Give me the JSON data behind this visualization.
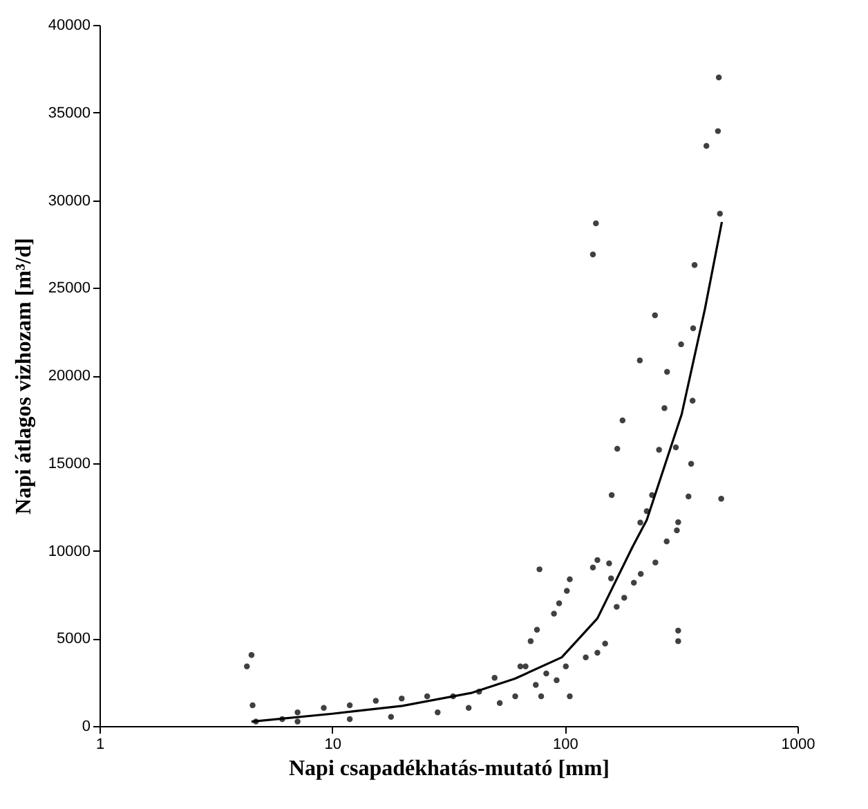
{
  "chart_data": {
    "type": "scatter",
    "xlabel": "Napi csapadékhatás-mutató [mm]",
    "ylabel": "Napi átlagos vizhozam [m³/d]",
    "log": "x",
    "xlim": [
      1,
      1000
    ],
    "xticks": [
      1,
      10,
      100,
      1000
    ],
    "ylim": [
      0,
      40000
    ],
    "yticks": [
      0,
      5000,
      10000,
      15000,
      20000,
      25000,
      30000,
      35000,
      40000
    ],
    "grid": false,
    "marker": "circle",
    "series": [
      {
        "color": "#404040",
        "x": [
          4.5,
          4.3,
          4.55,
          4.7,
          6.1,
          7.1,
          9.2,
          11.9,
          15.4,
          19.9,
          25.6,
          33.1,
          49.9,
          42.8,
          64.4,
          7.1,
          11.9,
          17.9,
          28.4,
          38.6,
          52.5,
          77.8,
          105,
          102,
          94.5,
          89.8,
          75.9,
          71.3,
          138,
          132,
          155,
          158,
          245,
          274,
          212,
          198,
          307,
          307,
          67.8,
          83.2,
          101,
          123,
          138,
          149,
          167,
          180,
          75,
          92.2,
          105,
          79.1,
          61.2,
          459,
          455,
          406,
          464,
          136,
          132,
          361,
          244,
          356,
          316,
          210,
          275,
          268,
          354,
          177,
          168,
          254,
          300,
          349,
          159,
          237,
          340,
          470,
          225,
          211,
          307,
          303
        ],
        "values": [
          4050,
          3400,
          1180,
          260,
          390,
          780,
          1040,
          1180,
          1440,
          1570,
          1700,
          1700,
          2750,
          1960,
          3400,
          260,
          390,
          520,
          780,
          1040,
          1310,
          8940,
          8370,
          7710,
          7000,
          6410,
          5490,
          4840,
          9470,
          9040,
          9280,
          8420,
          9330,
          10530,
          8680,
          8180,
          5440,
          4840,
          3400,
          3000,
          3400,
          3920,
          4180,
          4700,
          6800,
          7320,
          2350,
          2610,
          1700,
          1700,
          1700,
          37000,
          33940,
          33100,
          29230,
          28680,
          26900,
          26300,
          23430,
          22690,
          21780,
          20860,
          20210,
          18140,
          18560,
          17440,
          15820,
          15760,
          15900,
          14960,
          13180,
          13180,
          13100,
          12970,
          12260,
          11610,
          11630,
          11160
        ]
      },
      {
        "type": "line",
        "color": "#000000",
        "marker": "none",
        "x": [
          4.5,
          10,
          20,
          40,
          61,
          97,
          138,
          195,
          225,
          318,
          400,
          473
        ],
        "values": [
          250,
          700,
          1150,
          1900,
          2700,
          3920,
          6140,
          10200,
          11760,
          17800,
          23790,
          28760
        ]
      }
    ]
  }
}
